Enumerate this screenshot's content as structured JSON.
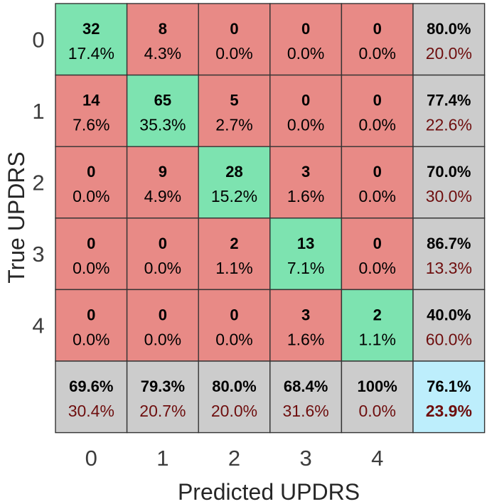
{
  "chart_data": {
    "type": "heatmap",
    "subtype": "confusion-matrix",
    "xlabel": "Predicted UPDRS",
    "ylabel": "True UPDRS",
    "classes": [
      "0",
      "1",
      "2",
      "3",
      "4"
    ],
    "counts": [
      [
        32,
        8,
        0,
        0,
        0
      ],
      [
        14,
        65,
        5,
        0,
        0
      ],
      [
        0,
        9,
        28,
        3,
        0
      ],
      [
        0,
        0,
        2,
        13,
        0
      ],
      [
        0,
        0,
        0,
        3,
        2
      ]
    ],
    "cell_percents": [
      [
        "17.4%",
        "4.3%",
        "0.0%",
        "0.0%",
        "0.0%"
      ],
      [
        "7.6%",
        "35.3%",
        "2.7%",
        "0.0%",
        "0.0%"
      ],
      [
        "0.0%",
        "4.9%",
        "15.2%",
        "1.6%",
        "0.0%"
      ],
      [
        "0.0%",
        "0.0%",
        "1.1%",
        "7.1%",
        "0.0%"
      ],
      [
        "0.0%",
        "0.0%",
        "0.0%",
        "1.6%",
        "1.1%"
      ]
    ],
    "row_summary": [
      {
        "correct": "80.0%",
        "incorrect": "20.0%"
      },
      {
        "correct": "77.4%",
        "incorrect": "22.6%"
      },
      {
        "correct": "70.0%",
        "incorrect": "30.0%"
      },
      {
        "correct": "86.7%",
        "incorrect": "13.3%"
      },
      {
        "correct": "40.0%",
        "incorrect": "60.0%"
      }
    ],
    "column_summary": [
      {
        "correct": "69.6%",
        "incorrect": "30.4%"
      },
      {
        "correct": "79.3%",
        "incorrect": "20.7%"
      },
      {
        "correct": "80.0%",
        "incorrect": "20.0%"
      },
      {
        "correct": "68.4%",
        "incorrect": "31.6%"
      },
      {
        "correct": "100%",
        "incorrect": "0.0%"
      }
    ],
    "overall": {
      "correct": "76.1%",
      "incorrect": "23.9%"
    },
    "colors": {
      "correct_cell": "#7de3b0",
      "incorrect_cell": "#e88a86",
      "summary_cell": "#cccccc",
      "overall_cell": "#bdeefc",
      "incorrect_text": "#6e0e0e",
      "grid_line": "#333333"
    }
  }
}
